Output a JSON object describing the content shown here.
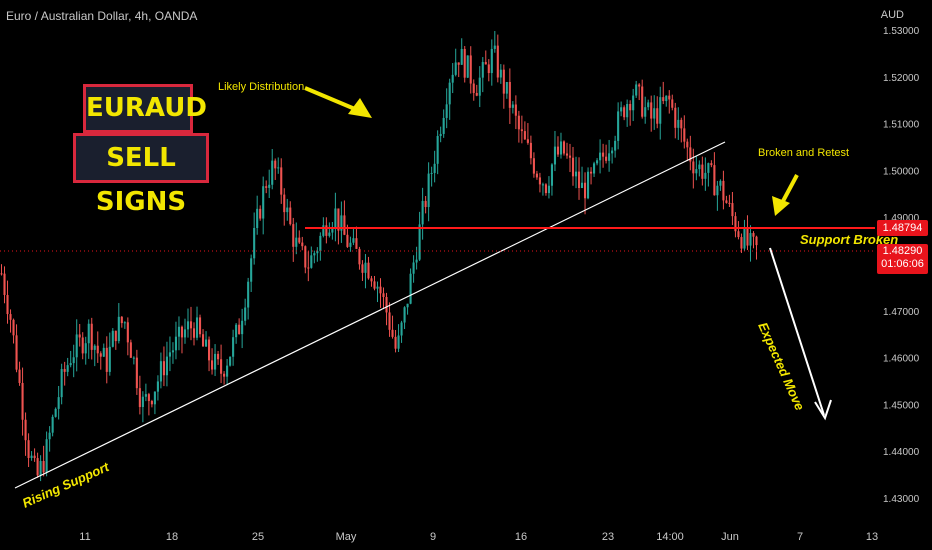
{
  "header": {
    "title": "Euro / Australian Dollar, 4h, OANDA",
    "currency": "AUD"
  },
  "signs": {
    "line1": "EURAUD",
    "line2": "SELL SIGNS"
  },
  "annotations": {
    "likely_distribution": "Likely Distribution",
    "broken_retest": "Broken and Retest",
    "support_broken": "Support Broken",
    "expected_move": "Expected Move",
    "rising_support": "Rising Support"
  },
  "price_tags": {
    "support_level": "1.48794",
    "current_price": "1.48290",
    "countdown": "01:06:06"
  },
  "colors": {
    "bull": "#26a69a",
    "bear": "#ef5350",
    "support_line": "#ff1a1a",
    "trendline": "#ffffff",
    "annotation": "#f2e600"
  },
  "chart_data": {
    "type": "candlestick",
    "symbol": "EURAUD",
    "interval": "4h",
    "y_axis": {
      "min": 1.43,
      "max": 1.53,
      "ticks": [
        "1.53000",
        "1.52000",
        "1.51000",
        "1.50000",
        "1.49000",
        "1.48000",
        "1.47000",
        "1.46000",
        "1.45000",
        "1.44000",
        "1.43000"
      ]
    },
    "x_ticks": [
      "11",
      "18",
      "25",
      "May",
      "9",
      "16",
      "23",
      "14:00",
      "Jun",
      "7",
      "13"
    ],
    "support_level": 1.48794,
    "last_price": 1.4829,
    "price_path": [
      1.478,
      1.469,
      1.455,
      1.441,
      1.434,
      1.439,
      1.448,
      1.456,
      1.461,
      1.463,
      1.466,
      1.461,
      1.459,
      1.466,
      1.468,
      1.46,
      1.45,
      1.452,
      1.456,
      1.461,
      1.463,
      1.466,
      1.467,
      1.462,
      1.459,
      1.457,
      1.461,
      1.466,
      1.476,
      1.488,
      1.497,
      1.501,
      1.495,
      1.487,
      1.482,
      1.48,
      1.484,
      1.489,
      1.491,
      1.486,
      1.483,
      1.481,
      1.479,
      1.475,
      1.469,
      1.461,
      1.47,
      1.481,
      1.491,
      1.5,
      1.51,
      1.52,
      1.525,
      1.522,
      1.518,
      1.521,
      1.525,
      1.519,
      1.514,
      1.508,
      1.504,
      1.5,
      1.497,
      1.503,
      1.504,
      1.5,
      1.496,
      1.497,
      1.501,
      1.505,
      1.509,
      1.514,
      1.517,
      1.514,
      1.511,
      1.513,
      1.515,
      1.51,
      1.505,
      1.501,
      1.5,
      1.498,
      1.496,
      1.491,
      1.487,
      1.484,
      1.483
    ]
  }
}
